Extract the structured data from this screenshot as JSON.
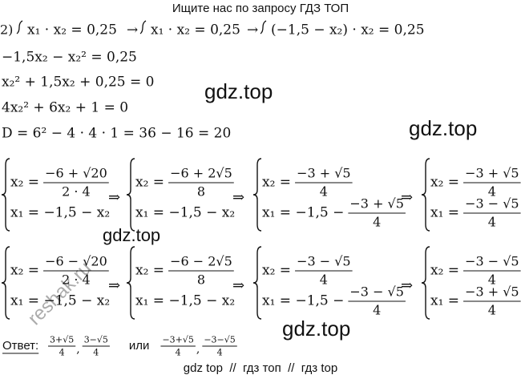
{
  "header": "Ищите нас по запросу ГДЗ ТОП",
  "top_row": {
    "number": "2)",
    "parts": [
      "x₁ · x₂ = 0,25",
      "→",
      "x₁ · x₂ = 0,25",
      "→",
      "(−1,5 − x₂) · x₂ = 0,25"
    ]
  },
  "lines": [
    "−1,5x₂ − x₂² = 0,25",
    "x₂² + 1,5x₂ + 0,25 = 0",
    "4x₂² + 6x₂ + 1 = 0",
    "D = 6² − 4 · 4 · 1 = 36 − 16 = 20"
  ],
  "watermarks": [
    "gdz.top",
    "gdz.top",
    "gdz.top",
    "gdz.top"
  ],
  "stamp": "reshak.ru",
  "blocks": [
    {
      "arrows": [
        "⇒",
        "⇒",
        "⇒"
      ],
      "systems": [
        {
          "rows": [
            {
              "lhs": "x₂ =",
              "num": "−6 + √20",
              "den": "2 · 4"
            },
            {
              "lhs": "x₁ = −1,5 − x₂"
            }
          ]
        },
        {
          "rows": [
            {
              "lhs": "x₂ =",
              "num": "−6 + 2√5",
              "den": "8"
            },
            {
              "lhs": "x₁ = −1,5 − x₂"
            }
          ]
        },
        {
          "rows": [
            {
              "lhs": "x₂ =",
              "num": "−3 + √5",
              "den": "4"
            },
            {
              "lhs": "x₁ = −1,5 −",
              "num": "−3 + √5",
              "den": "4"
            }
          ]
        },
        {
          "rows": [
            {
              "lhs": "x₂ =",
              "num": "−3 + √5",
              "den": "4"
            },
            {
              "lhs": "x₁ =",
              "num": "−3 − √5",
              "den": "4"
            }
          ]
        }
      ]
    },
    {
      "arrows": [
        "⇒",
        "⇒",
        "⇒"
      ],
      "systems": [
        {
          "rows": [
            {
              "lhs": "x₂ =",
              "num": "−6 − √20",
              "den": "2 · 4"
            },
            {
              "lhs": "x₁ = −1,5 − x₂"
            }
          ]
        },
        {
          "rows": [
            {
              "lhs": "x₂ =",
              "num": "−6 − 2√5",
              "den": "8"
            },
            {
              "lhs": "x₁ = −1,5 − x₂"
            }
          ]
        },
        {
          "rows": [
            {
              "lhs": "x₂ =",
              "num": "−3 − √5",
              "den": "4"
            },
            {
              "lhs": "x₁ = −1,5 −",
              "num": "−3 − √5",
              "den": "4"
            }
          ]
        },
        {
          "rows": [
            {
              "lhs": "x₂ =",
              "num": "−3 − √5",
              "den": "4"
            },
            {
              "lhs": "x₁ =",
              "num": "−3 + √5",
              "den": "4"
            }
          ]
        }
      ]
    }
  ],
  "answer": {
    "label": "Ответ:",
    "first": [
      {
        "num": "3+√5",
        "den": "4"
      },
      {
        "num": "3−√5",
        "den": "4"
      }
    ],
    "separator": ",",
    "or": "или",
    "second": [
      {
        "num": "−3+√5",
        "den": "4"
      },
      {
        "num": "−3−√5",
        "den": "4"
      }
    ]
  },
  "footer": "gdz top  //  гдз топ  //  гдз top"
}
